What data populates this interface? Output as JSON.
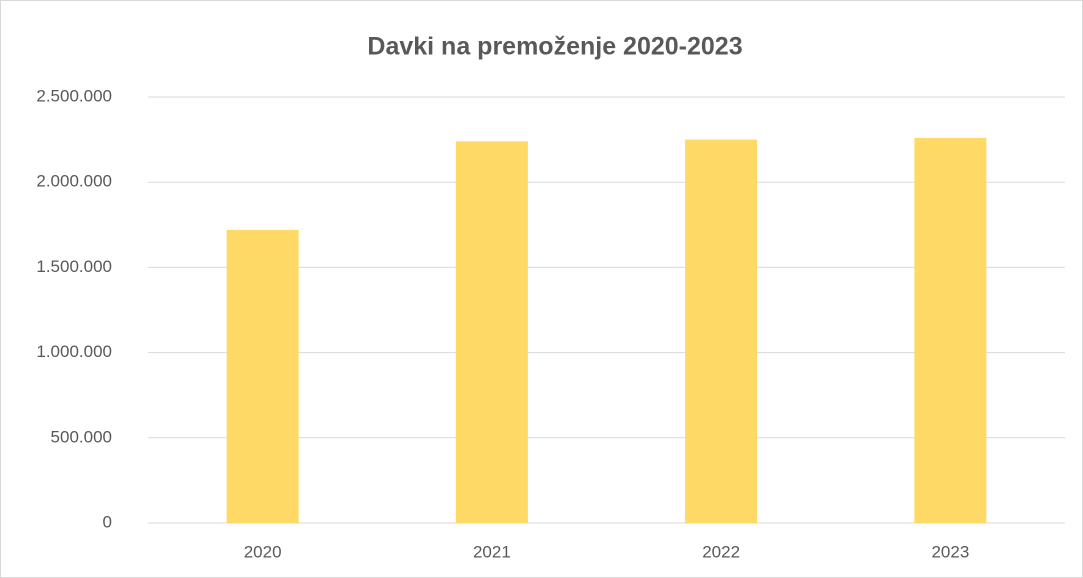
{
  "chart_data": {
    "type": "bar",
    "title": "Davki na premoženje 2020-2023",
    "categories": [
      "2020",
      "2021",
      "2022",
      "2023"
    ],
    "values": [
      1720000,
      2240000,
      2250000,
      2260000
    ],
    "color": "#ffd966",
    "ylim": [
      0,
      2500000
    ],
    "yticks": [
      0,
      {
        "value": 500000,
        "label": "500.000"
      },
      {
        "value": 1000000,
        "label": "1.000.000"
      },
      {
        "value": 1500000,
        "label": "1.500.000"
      },
      {
        "value": 2000000,
        "label": "2.000.000"
      },
      {
        "value": 2500000,
        "label": "2.500.000"
      }
    ],
    "grid": true
  }
}
